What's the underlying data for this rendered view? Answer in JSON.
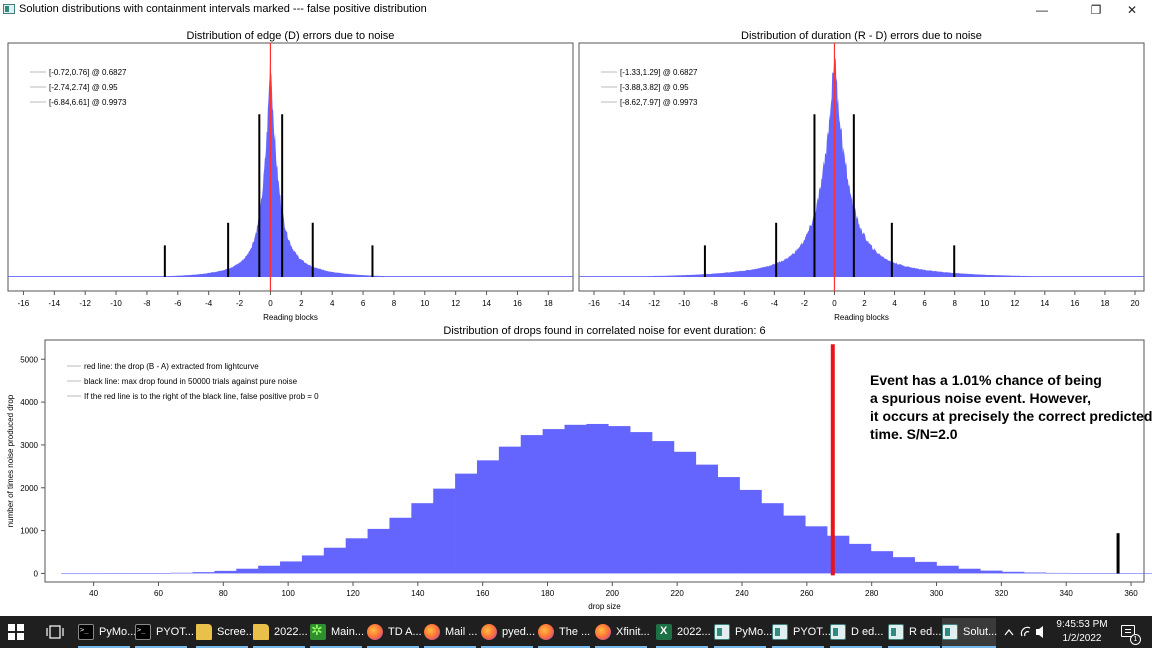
{
  "window": {
    "title": "Solution distributions with containment intervals marked --- false positive distribution",
    "min_glyph": "—",
    "max_glyph": "❐",
    "close_glyph": "✕"
  },
  "chart_data": [
    {
      "type": "histogram",
      "title": "Distribution of edge (D) errors due to noise",
      "xlabel": "Reading blocks",
      "xlim": [
        -17,
        19.6
      ],
      "xticks": [
        -16,
        -14,
        -12,
        -10,
        -8,
        -6,
        -4,
        -2,
        0,
        2,
        4,
        6,
        8,
        10,
        12,
        14,
        16,
        18
      ],
      "peak_x": 0,
      "spread_left": 0.8,
      "spread_right": 0.9,
      "red_line_x": 0,
      "legend": [
        "[-0.72,0.76] @ 0.6827",
        "[-2.74,2.74] @ 0.95",
        "[-6.84,6.61] @ 0.9973"
      ],
      "interval_lines": [
        {
          "x": -0.72,
          "height": 0.72
        },
        {
          "x": 0.76,
          "height": 0.72
        },
        {
          "x": -2.74,
          "height": 0.24
        },
        {
          "x": 2.74,
          "height": 0.24
        },
        {
          "x": -6.84,
          "height": 0.14
        },
        {
          "x": 6.61,
          "height": 0.14
        }
      ],
      "bar_color": "#6464ff"
    },
    {
      "type": "histogram",
      "title": "Distribution of duration (R - D) errors due to noise",
      "xlabel": "Reading blocks",
      "xlim": [
        -17,
        20.6
      ],
      "xticks": [
        -16,
        -14,
        -12,
        -10,
        -8,
        -6,
        -4,
        -2,
        0,
        2,
        4,
        6,
        8,
        10,
        12,
        14,
        16,
        18,
        20
      ],
      "peak_x": 0,
      "spread_left": 1.5,
      "spread_right": 1.6,
      "red_line_x": 0,
      "legend": [
        "[-1.33,1.29] @ 0.6827",
        "[-3.88,3.82] @ 0.95",
        "[-8.62,7.97] @ 0.9973"
      ],
      "interval_lines": [
        {
          "x": -1.33,
          "height": 0.72
        },
        {
          "x": 1.29,
          "height": 0.72
        },
        {
          "x": -3.88,
          "height": 0.24
        },
        {
          "x": 3.82,
          "height": 0.24
        },
        {
          "x": -8.62,
          "height": 0.14
        },
        {
          "x": 7.97,
          "height": 0.14
        }
      ],
      "bar_color": "#6464ff"
    },
    {
      "type": "bar",
      "title": "Distribution of drops found in correlated noise for event duration: 6",
      "xlabel": "drop size",
      "ylabel": "number of times noise produced drop",
      "xlim": [
        25,
        364
      ],
      "ylim": [
        -200,
        5450
      ],
      "xticks": [
        40,
        60,
        80,
        100,
        120,
        140,
        160,
        180,
        200,
        220,
        240,
        260,
        280,
        300,
        320,
        340,
        360
      ],
      "yticks": [
        0,
        1000,
        2000,
        3000,
        4000,
        5000
      ],
      "bin_start": 30,
      "bin_width": 6.75,
      "values": [
        0,
        0,
        3,
        5,
        8,
        15,
        30,
        60,
        110,
        180,
        280,
        420,
        600,
        820,
        1040,
        1300,
        1640,
        1980,
        2330,
        2640,
        2960,
        3230,
        3370,
        3470,
        3490,
        3440,
        3300,
        3090,
        2840,
        2540,
        2250,
        1950,
        1640,
        1350,
        1100,
        880,
        690,
        520,
        380,
        270,
        180,
        110,
        65,
        38,
        22,
        12,
        7,
        4,
        2,
        1
      ],
      "red_line": {
        "x": 268,
        "y_top": 5350
      },
      "black_line": {
        "x": 356,
        "y_top": 940
      },
      "legend": [
        "red line: the drop (B - A) extracted from lightcurve",
        "black line: max drop found in 50000 trials against pure noise",
        "If the red line is to the right of the black line, false positive prob = 0"
      ],
      "bar_color": "#6464ff"
    }
  ],
  "annotation": {
    "lines": [
      "Event has a 1.01% chance of being",
      "a spurious noise event. However,",
      "it occurs at precisely the correct predicted",
      "time.  S/N=2.0"
    ]
  },
  "taskbar": {
    "items": [
      {
        "label": "PyMo...",
        "icon": "terminal-icon",
        "active": true
      },
      {
        "label": "PYOT...",
        "icon": "terminal-icon",
        "active": true
      },
      {
        "label": "Scree...",
        "icon": "folder-icon",
        "active": true
      },
      {
        "label": "2022...",
        "icon": "folder-icon",
        "active": true
      },
      {
        "label": "Main...",
        "icon": "app-icon",
        "active": true
      },
      {
        "label": "TD A...",
        "icon": "firefox-icon",
        "active": true
      },
      {
        "label": "Mail ...",
        "icon": "firefox-icon",
        "active": true
      },
      {
        "label": "pyed...",
        "icon": "firefox-icon",
        "active": true
      },
      {
        "label": "The ...",
        "icon": "firefox-icon",
        "active": true
      },
      {
        "label": "Xfinit...",
        "icon": "firefox-icon",
        "active": true
      },
      {
        "label": "2022...",
        "icon": "excel-icon",
        "active": true
      },
      {
        "label": "PyMo...",
        "icon": "qt-window-icon",
        "active": true
      },
      {
        "label": "PYOT...",
        "icon": "qt-window-icon",
        "active": true
      },
      {
        "label": "D ed...",
        "icon": "qt-window-icon",
        "active": true
      },
      {
        "label": "R ed...",
        "icon": "qt-window-icon",
        "active": true
      },
      {
        "label": "Solut...",
        "icon": "qt-window-icon",
        "active": true
      }
    ],
    "clock_time": "9:45:53 PM",
    "clock_date": "1/2/2022",
    "notification_count": "1"
  }
}
